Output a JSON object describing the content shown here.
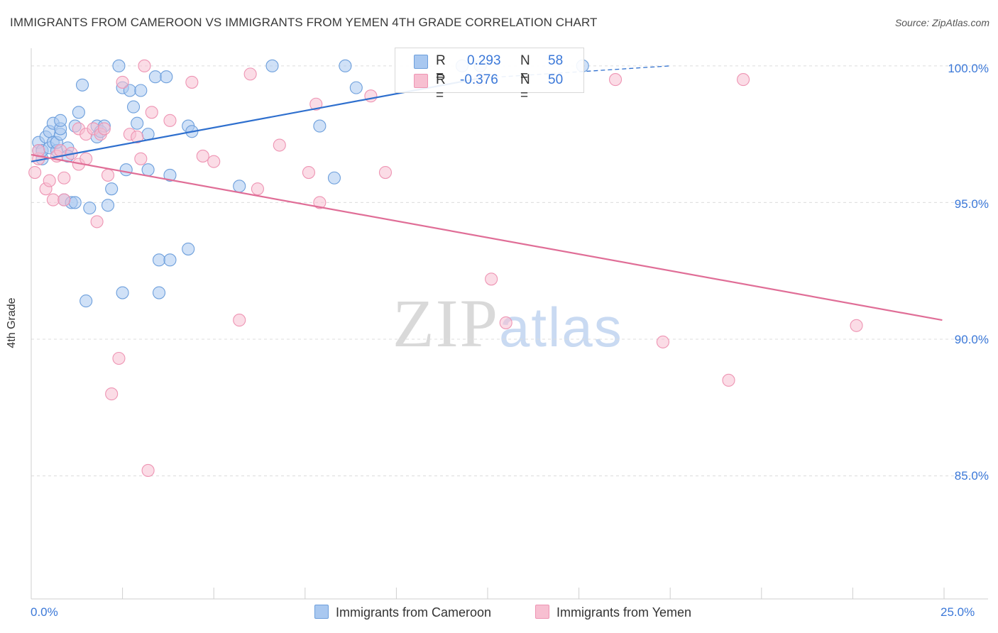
{
  "title": "IMMIGRANTS FROM CAMEROON VS IMMIGRANTS FROM YEMEN 4TH GRADE CORRELATION CHART",
  "source": "Source: ZipAtlas.com",
  "watermark": {
    "zip": "ZIP",
    "atlas": "atlas"
  },
  "legend": {
    "r_label": "R =",
    "n_label": "N =",
    "cameroon": {
      "r": "0.293",
      "n": "58"
    },
    "yemen": {
      "r": "-0.376",
      "n": "50"
    }
  },
  "colors": {
    "blue_fill": "#a9c8f0",
    "blue_stroke": "#6d9fdc",
    "blue_line": "#2e6fce",
    "pink_fill": "#f7bfd1",
    "pink_stroke": "#ee94b3",
    "pink_line": "#e06e97",
    "tick_text": "#3b78d8"
  },
  "chart_data": {
    "type": "scatter",
    "title": "IMMIGRANTS FROM CAMEROON VS IMMIGRANTS FROM YEMEN 4TH GRADE CORRELATION CHART",
    "xlabel": "",
    "ylabel": "4th Grade",
    "xlim": [
      0,
      25
    ],
    "ylim": [
      80.5,
      100.8
    ],
    "x_tick_labels": [
      "0.0%",
      "25.0%"
    ],
    "y_ticks": [
      85,
      90,
      95,
      100
    ],
    "y_tick_labels": [
      "85.0%",
      "90.0%",
      "95.0%",
      "100.0%"
    ],
    "grid": true,
    "legend_position": "top-center",
    "series": [
      {
        "name": "Immigrants from Cameroon",
        "r": 0.293,
        "n": 58,
        "trend": {
          "x": [
            0,
            12.3
          ],
          "y": [
            96.5,
            99.55
          ],
          "dashed_to": [
            17.5,
            100.0
          ]
        },
        "points": [
          [
            0.2,
            97.2
          ],
          [
            0.2,
            96.9
          ],
          [
            0.3,
            96.6
          ],
          [
            0.3,
            96.9
          ],
          [
            0.4,
            97.4
          ],
          [
            0.5,
            97.6
          ],
          [
            0.5,
            97.0
          ],
          [
            0.6,
            97.9
          ],
          [
            0.6,
            97.2
          ],
          [
            0.7,
            96.9
          ],
          [
            0.7,
            97.2
          ],
          [
            0.8,
            97.5
          ],
          [
            0.8,
            97.7
          ],
          [
            0.8,
            98.0
          ],
          [
            0.9,
            95.1
          ],
          [
            1.0,
            97.0
          ],
          [
            1.0,
            96.7
          ],
          [
            1.1,
            95.0
          ],
          [
            1.2,
            95.0
          ],
          [
            1.2,
            97.8
          ],
          [
            1.3,
            98.3
          ],
          [
            1.4,
            99.3
          ],
          [
            1.5,
            91.4
          ],
          [
            1.6,
            94.8
          ],
          [
            1.8,
            97.4
          ],
          [
            1.8,
            97.8
          ],
          [
            1.9,
            97.6
          ],
          [
            2.0,
            97.8
          ],
          [
            2.1,
            94.9
          ],
          [
            2.2,
            95.5
          ],
          [
            2.4,
            100.0
          ],
          [
            2.5,
            99.2
          ],
          [
            2.5,
            91.7
          ],
          [
            2.6,
            96.2
          ],
          [
            2.7,
            99.1
          ],
          [
            2.8,
            98.5
          ],
          [
            2.9,
            97.9
          ],
          [
            3.0,
            99.1
          ],
          [
            3.2,
            97.5
          ],
          [
            3.2,
            96.2
          ],
          [
            3.4,
            99.6
          ],
          [
            3.5,
            92.9
          ],
          [
            3.5,
            91.7
          ],
          [
            3.7,
            99.6
          ],
          [
            3.8,
            96.0
          ],
          [
            3.8,
            92.9
          ],
          [
            4.3,
            97.8
          ],
          [
            4.4,
            97.6
          ],
          [
            4.3,
            93.3
          ],
          [
            5.7,
            95.6
          ],
          [
            6.6,
            100.0
          ],
          [
            7.9,
            97.8
          ],
          [
            8.3,
            95.9
          ],
          [
            8.6,
            100.0
          ],
          [
            8.9,
            99.2
          ],
          [
            11.8,
            100.0
          ],
          [
            12.3,
            100.0
          ],
          [
            15.1,
            100.0
          ]
        ]
      },
      {
        "name": "Immigrants from Yemen",
        "r": -0.376,
        "n": 50,
        "trend": {
          "x": [
            0,
            24.95
          ],
          "y": [
            96.75,
            90.7
          ]
        },
        "points": [
          [
            0.1,
            96.1
          ],
          [
            0.2,
            96.6
          ],
          [
            0.2,
            96.9
          ],
          [
            0.4,
            95.5
          ],
          [
            0.5,
            95.8
          ],
          [
            0.6,
            95.1
          ],
          [
            0.7,
            96.7
          ],
          [
            0.8,
            96.9
          ],
          [
            0.9,
            95.9
          ],
          [
            0.9,
            95.1
          ],
          [
            1.1,
            96.8
          ],
          [
            1.3,
            96.4
          ],
          [
            1.3,
            97.7
          ],
          [
            1.5,
            96.6
          ],
          [
            1.5,
            97.5
          ],
          [
            1.7,
            97.7
          ],
          [
            1.8,
            94.3
          ],
          [
            1.9,
            97.5
          ],
          [
            2.0,
            97.7
          ],
          [
            2.1,
            96.0
          ],
          [
            2.2,
            88.0
          ],
          [
            2.4,
            89.3
          ],
          [
            2.5,
            99.4
          ],
          [
            2.7,
            97.5
          ],
          [
            2.9,
            97.4
          ],
          [
            3.0,
            96.6
          ],
          [
            3.1,
            100.0
          ],
          [
            3.2,
            85.2
          ],
          [
            3.3,
            98.3
          ],
          [
            3.8,
            98.0
          ],
          [
            4.4,
            99.4
          ],
          [
            4.7,
            96.7
          ],
          [
            5.0,
            96.5
          ],
          [
            5.7,
            90.7
          ],
          [
            6.0,
            99.7
          ],
          [
            6.2,
            95.5
          ],
          [
            6.8,
            97.1
          ],
          [
            7.6,
            96.1
          ],
          [
            7.8,
            98.6
          ],
          [
            7.9,
            95.0
          ],
          [
            9.3,
            98.9
          ],
          [
            9.7,
            96.1
          ],
          [
            12.3,
            99.5
          ],
          [
            12.6,
            92.2
          ],
          [
            13.0,
            90.6
          ],
          [
            16.0,
            99.5
          ],
          [
            17.3,
            89.9
          ],
          [
            19.1,
            88.5
          ],
          [
            19.5,
            99.5
          ],
          [
            22.6,
            90.5
          ]
        ]
      }
    ]
  },
  "bottom_legend": {
    "cameroon": "Immigrants from Cameroon",
    "yemen": "Immigrants from Yemen"
  }
}
